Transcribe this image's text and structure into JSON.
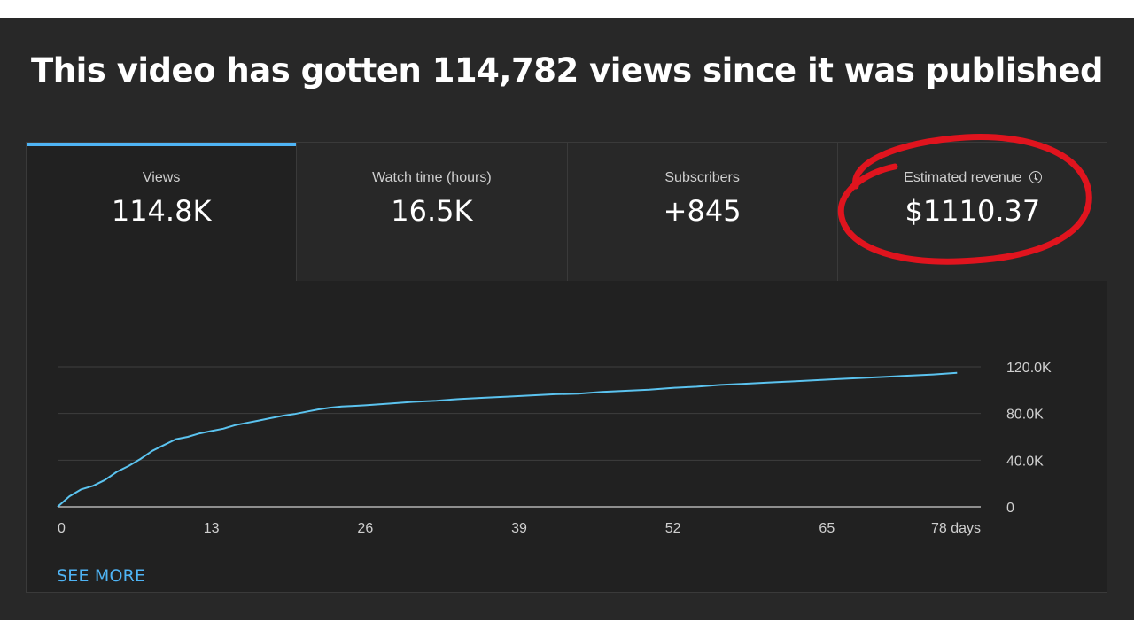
{
  "headline": "This video has gotten 114,782 views since it was published",
  "tabs": [
    {
      "label": "Views",
      "value": "114.8K",
      "active": true
    },
    {
      "label": "Watch time (hours)",
      "value": "16.5K",
      "active": false
    },
    {
      "label": "Subscribers",
      "value": "+845",
      "active": false
    },
    {
      "label": "Estimated revenue",
      "value": "$1110.37",
      "active": false,
      "icon": "clock-icon"
    }
  ],
  "see_more": "SEE MORE",
  "colors": {
    "line": "#5bc3ef",
    "accent": "#4fb4f5",
    "annotation": "#e0141e"
  },
  "chart_data": {
    "type": "line",
    "xlabel": "",
    "ylabel": "",
    "x_ticks": [
      "0",
      "13",
      "26",
      "39",
      "52",
      "65",
      "78 days"
    ],
    "y_ticks": [
      "0",
      "40.0K",
      "80.0K",
      "120.0K"
    ],
    "xlim": [
      0,
      78
    ],
    "ylim": [
      0,
      120000
    ],
    "grid": true,
    "series": [
      {
        "x": [
          0,
          1,
          2,
          3,
          4,
          5,
          6,
          7,
          8,
          9,
          10,
          11,
          12,
          13,
          14,
          15,
          16,
          17,
          18,
          19,
          20,
          21,
          22,
          23,
          24,
          25,
          26,
          28,
          30,
          32,
          34,
          36,
          38,
          40,
          42,
          44,
          46,
          48,
          50,
          52,
          54,
          56,
          58,
          60,
          62,
          64,
          66,
          68,
          70,
          72,
          74,
          76,
          74.2
        ],
        "y": [
          0,
          9000,
          15000,
          18000,
          23000,
          30000,
          35000,
          41000,
          48000,
          53000,
          58000,
          60000,
          63000,
          65000,
          67000,
          70000,
          72000,
          74000,
          76000,
          78000,
          79500,
          81500,
          83500,
          85000,
          86000,
          86500,
          87000,
          88500,
          90000,
          91000,
          92500,
          93500,
          94500,
          95500,
          96500,
          97000,
          98500,
          99500,
          100500,
          102000,
          103000,
          104500,
          105500,
          106500,
          107500,
          108500,
          109500,
          110500,
          111500,
          112500,
          113500,
          114800,
          114800
        ]
      }
    ]
  }
}
